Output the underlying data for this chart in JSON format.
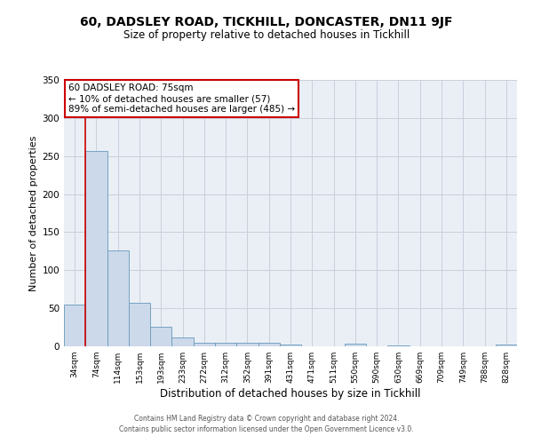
{
  "title": "60, DADSLEY ROAD, TICKHILL, DONCASTER, DN11 9JF",
  "subtitle": "Size of property relative to detached houses in Tickhill",
  "xlabel": "Distribution of detached houses by size in Tickhill",
  "ylabel": "Number of detached properties",
  "bar_labels": [
    "34sqm",
    "74sqm",
    "114sqm",
    "153sqm",
    "193sqm",
    "233sqm",
    "272sqm",
    "312sqm",
    "352sqm",
    "391sqm",
    "431sqm",
    "471sqm",
    "511sqm",
    "550sqm",
    "590sqm",
    "630sqm",
    "669sqm",
    "709sqm",
    "749sqm",
    "788sqm",
    "828sqm"
  ],
  "bar_values": [
    55,
    257,
    126,
    57,
    26,
    12,
    5,
    5,
    5,
    5,
    2,
    0,
    0,
    3,
    0,
    1,
    0,
    0,
    0,
    0,
    2
  ],
  "bar_color": "#ccd9ea",
  "bar_edge_color": "#6699bb",
  "grid_color": "#c8d0dc",
  "bg_color": "#eaeff6",
  "vline_color": "#cc0000",
  "vline_x_index": 1,
  "annotation_title": "60 DADSLEY ROAD: 75sqm",
  "annotation_line1": "← 10% of detached houses are smaller (57)",
  "annotation_line2": "89% of semi-detached houses are larger (485) →",
  "annotation_box_facecolor": "#ffffff",
  "annotation_box_edgecolor": "#cc0000",
  "ylim": [
    0,
    350
  ],
  "yticks": [
    0,
    50,
    100,
    150,
    200,
    250,
    300,
    350
  ],
  "title_fontsize": 10,
  "subtitle_fontsize": 8.5,
  "ylabel_fontsize": 8,
  "xlabel_fontsize": 8.5,
  "footer_line1": "Contains HM Land Registry data © Crown copyright and database right 2024.",
  "footer_line2": "Contains public sector information licensed under the Open Government Licence v3.0."
}
